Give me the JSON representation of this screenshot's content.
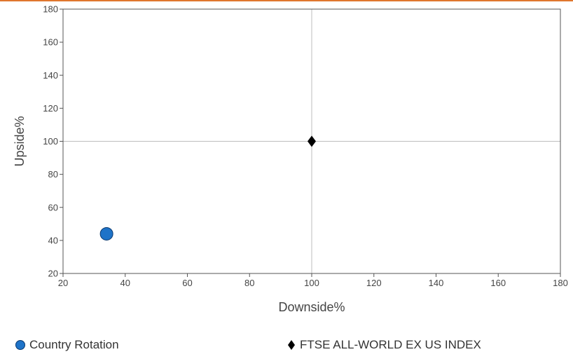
{
  "chart_data": {
    "type": "scatter",
    "xlabel": "Downside%",
    "ylabel": "Upside%",
    "xlim": [
      20,
      180
    ],
    "ylim": [
      20,
      180
    ],
    "xticks": [
      20,
      40,
      60,
      80,
      100,
      120,
      140,
      160,
      180
    ],
    "yticks": [
      20,
      40,
      60,
      80,
      100,
      120,
      140,
      160,
      180
    ],
    "reference_lines": {
      "x": 100,
      "y": 100
    },
    "series": [
      {
        "name": "Country Rotation",
        "marker": "circle",
        "color": "#1E73C8",
        "x": [
          34
        ],
        "y": [
          44
        ]
      },
      {
        "name": "FTSE ALL-WORLD EX US INDEX",
        "marker": "diamond",
        "color": "#000000",
        "x": [
          100
        ],
        "y": [
          100
        ]
      }
    ],
    "legend": "bottom"
  },
  "colors": {
    "accent_rule": "#E0762E"
  }
}
